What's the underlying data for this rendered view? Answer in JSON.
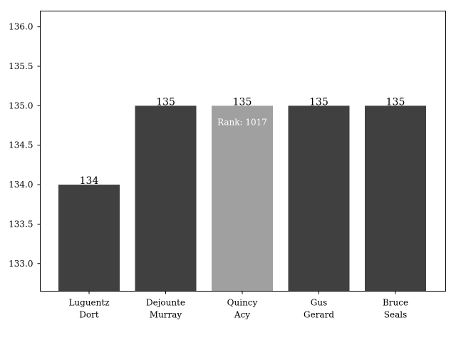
{
  "chart_data": {
    "type": "bar",
    "title": "",
    "xlabel": "",
    "ylabel": "",
    "categories": [
      [
        "Luguentz",
        "Dort"
      ],
      [
        "Dejounte",
        "Murray"
      ],
      [
        "Quincy",
        "Acy"
      ],
      [
        "Gus",
        "Gerard"
      ],
      [
        "Bruce",
        "Seals"
      ]
    ],
    "values": [
      134,
      135,
      135,
      135,
      135
    ],
    "value_labels": [
      "134",
      "135",
      "135",
      "135",
      "135"
    ],
    "highlight_index": 2,
    "highlight_annotation": "Rank: 1017",
    "colors": {
      "bar": "#404040",
      "highlight": "#a0a0a0",
      "annotation_text": "#ffffff"
    },
    "ylim": [
      132.65,
      136.2
    ],
    "yticks": [
      "133.0",
      "133.5",
      "134.0",
      "134.5",
      "135.0",
      "135.5",
      "136.0"
    ],
    "grid": false,
    "legend": "none"
  }
}
